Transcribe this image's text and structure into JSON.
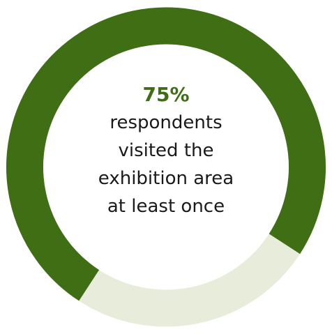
{
  "chart_data": {
    "type": "pie",
    "style": "donut",
    "slices": [
      {
        "label": "visited",
        "value": 75,
        "color": "#3f6e14"
      },
      {
        "label": "",
        "value": 25,
        "color": "#e8eddb"
      }
    ],
    "center_label": {
      "value": "75%",
      "text": "respondents\nvisited the\nexhibition area\nat least once"
    }
  },
  "colors": {
    "accent": "#3f6e14",
    "remainder": "#e8eddb",
    "text": "#1a1a1a",
    "background": "#ffffff"
  }
}
